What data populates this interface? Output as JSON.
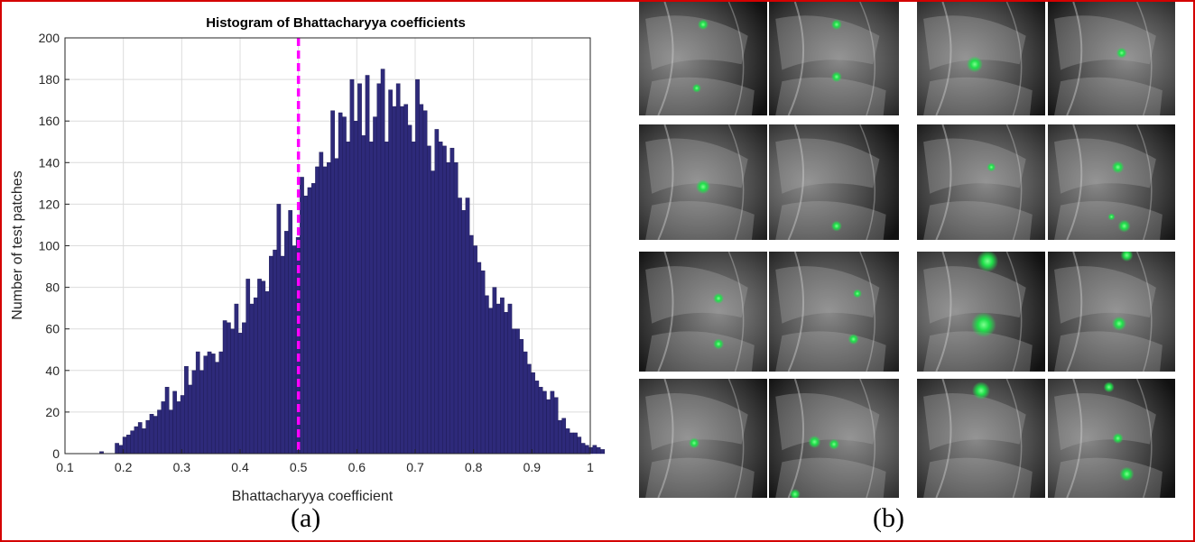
{
  "panel_a_label": "(a)",
  "panel_b_label": "(b)",
  "colors": {
    "bar_fill": "#2e2a7a",
    "bar_edge": "#1a1750",
    "threshold_line": "#ff00ff",
    "frame": "#d40000",
    "marker": "#00ff44"
  },
  "chart_data": {
    "type": "bar",
    "title": "Histogram of Bhattacharyya coefficients",
    "xlabel": "Bhattacharyya coefficient",
    "ylabel": "Number of test patches",
    "xlim": [
      0.1,
      1.0
    ],
    "ylim": [
      0,
      200
    ],
    "xticks": [
      "0.1",
      "0.2",
      "0.3",
      "0.4",
      "0.5",
      "0.6",
      "0.7",
      "0.8",
      "0.9",
      "1"
    ],
    "yticks": [
      "0",
      "20",
      "40",
      "60",
      "80",
      "100",
      "120",
      "140",
      "160",
      "180",
      "200"
    ],
    "grid": true,
    "bin_width": 0.0066,
    "bin_start": 0.1528,
    "values": [
      0,
      1,
      0,
      0,
      0,
      5,
      4,
      8,
      9,
      11,
      13,
      15,
      12,
      16,
      19,
      18,
      21,
      25,
      32,
      21,
      30,
      25,
      28,
      42,
      33,
      40,
      49,
      40,
      47,
      49,
      48,
      44,
      49,
      64,
      63,
      60,
      72,
      58,
      63,
      84,
      72,
      75,
      84,
      83,
      78,
      95,
      98,
      120,
      95,
      107,
      117,
      100,
      104,
      133,
      124,
      128,
      130,
      138,
      145,
      138,
      140,
      165,
      142,
      164,
      162,
      150,
      180,
      160,
      178,
      153,
      182,
      150,
      162,
      178,
      185,
      150,
      175,
      167,
      178,
      167,
      168,
      158,
      150,
      180,
      168,
      165,
      148,
      136,
      156,
      150,
      148,
      140,
      147,
      140,
      123,
      117,
      123,
      105,
      100,
      92,
      88,
      76,
      70,
      80,
      72,
      75,
      68,
      72,
      60,
      60,
      55,
      49,
      43,
      39,
      35,
      32,
      30,
      26,
      30,
      27,
      16,
      17,
      12,
      10,
      10,
      8,
      5,
      4,
      3,
      4,
      3,
      2,
      2,
      1
    ],
    "threshold": {
      "x": 0.5,
      "style": "dashed"
    }
  },
  "xray_tiles": [
    {
      "name": "tile-r1-left-a",
      "markers": [
        [
          0.5,
          0.2,
          6
        ],
        [
          0.45,
          0.76,
          5
        ]
      ]
    },
    {
      "name": "tile-r1-left-b",
      "markers": [
        [
          0.52,
          0.2,
          6
        ],
        [
          0.52,
          0.66,
          6
        ]
      ]
    },
    {
      "name": "tile-r1-right-a",
      "markers": [
        [
          0.45,
          0.55,
          9
        ]
      ]
    },
    {
      "name": "tile-r1-right-b",
      "markers": [
        [
          0.58,
          0.45,
          6
        ]
      ]
    },
    {
      "name": "tile-r2-left-a",
      "markers": [
        [
          0.5,
          0.54,
          8
        ]
      ]
    },
    {
      "name": "tile-r2-left-b",
      "markers": [
        [
          0.52,
          0.88,
          6
        ]
      ]
    },
    {
      "name": "tile-r2-right-a",
      "markers": [
        [
          0.58,
          0.37,
          5
        ]
      ]
    },
    {
      "name": "tile-r2-right-b",
      "markers": [
        [
          0.55,
          0.37,
          7
        ],
        [
          0.5,
          0.8,
          4
        ],
        [
          0.6,
          0.88,
          7
        ]
      ]
    },
    {
      "name": "tile-r3-left-a",
      "markers": [
        [
          0.62,
          0.39,
          6
        ],
        [
          0.62,
          0.77,
          6
        ]
      ]
    },
    {
      "name": "tile-r3-left-b",
      "markers": [
        [
          0.68,
          0.35,
          5
        ],
        [
          0.65,
          0.73,
          6
        ]
      ]
    },
    {
      "name": "tile-r3-right-a",
      "markers": [
        [
          0.55,
          0.08,
          12
        ],
        [
          0.52,
          0.61,
          14
        ]
      ]
    },
    {
      "name": "tile-r3-right-b",
      "markers": [
        [
          0.62,
          0.03,
          7
        ],
        [
          0.56,
          0.6,
          8
        ]
      ]
    },
    {
      "name": "tile-r4-left-a",
      "markers": [
        [
          0.43,
          0.54,
          6
        ]
      ]
    },
    {
      "name": "tile-r4-left-b",
      "markers": [
        [
          0.35,
          0.53,
          7
        ],
        [
          0.5,
          0.55,
          6
        ],
        [
          0.2,
          0.97,
          6
        ]
      ]
    },
    {
      "name": "tile-r4-right-a",
      "markers": [
        [
          0.5,
          0.1,
          10
        ]
      ]
    },
    {
      "name": "tile-r4-right-b",
      "markers": [
        [
          0.48,
          0.07,
          6
        ],
        [
          0.55,
          0.5,
          6
        ],
        [
          0.62,
          0.8,
          8
        ]
      ]
    }
  ]
}
